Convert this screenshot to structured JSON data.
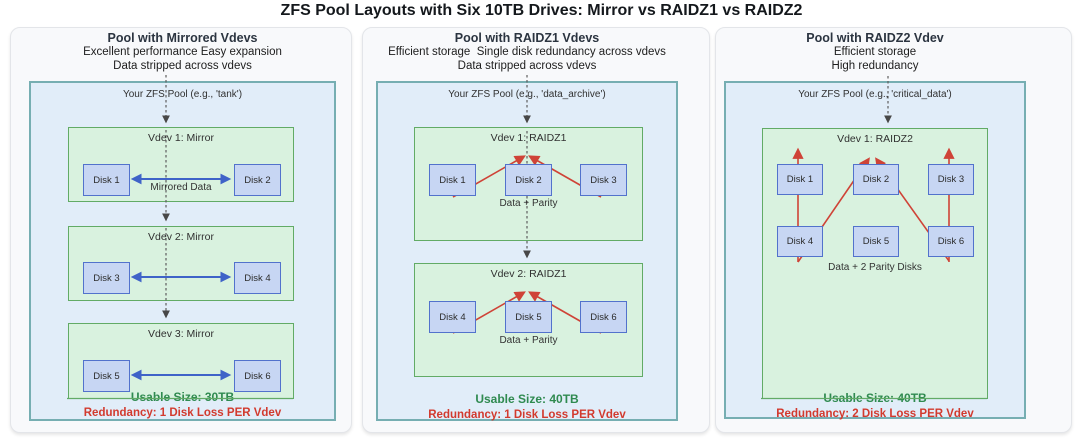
{
  "title": "ZFS Pool Layouts with Six 10TB Drives: Mirror vs RAIDZ1 vs RAIDZ2",
  "panels": [
    {
      "title": "Pool with Mirrored Vdevs",
      "subtitle1": "Excellent performance Easy expansion",
      "subtitle2": "Data stripped across vdevs",
      "pool_label": "Your ZFS Pool (e.g., 'tank')",
      "vdevs": [
        {
          "label": "Vdev 1: Mirror",
          "disks": [
            "Disk 1",
            "Disk 2"
          ],
          "annotation": "Mirrored Data"
        },
        {
          "label": "Vdev 2: Mirror",
          "disks": [
            "Disk 3",
            "Disk 4"
          ],
          "annotation": ""
        },
        {
          "label": "Vdev 3: Mirror",
          "disks": [
            "Disk 5",
            "Disk 6"
          ],
          "annotation": ""
        }
      ],
      "usable_size": "Usable Size: 30TB",
      "redundancy": "Redundancy: 1 Disk Loss PER Vdev"
    },
    {
      "title": "Pool with RAIDZ1 Vdevs",
      "subtitle1": "Efficient storage  Single disk redundancy across vdevs",
      "subtitle2": "Data stripped across vdevs",
      "pool_label": "Your ZFS Pool (e.g., 'data_archive')",
      "vdevs": [
        {
          "label": "Vdev 1: RAIDZ1",
          "disks": [
            "Disk 1",
            "Disk 2",
            "Disk 3"
          ],
          "annotation": "Data + Parity"
        },
        {
          "label": "Vdev 2: RAIDZ1",
          "disks": [
            "Disk 4",
            "Disk 5",
            "Disk 6"
          ],
          "annotation": "Data + Parity"
        }
      ],
      "usable_size": "Usable Size: 40TB",
      "redundancy": "Redundancy: 1 Disk Loss PER Vdev"
    },
    {
      "title": "Pool with RAIDZ2 Vdev",
      "subtitle1": "Efficient storage",
      "subtitle2": "High redundancy",
      "pool_label": "Your ZFS Pool (e.g., 'critical_data')",
      "vdevs": [
        {
          "label": "Vdev 1: RAIDZ2",
          "disks": [
            "Disk 1",
            "Disk 2",
            "Disk 3",
            "Disk 4",
            "Disk 5",
            "Disk 6"
          ],
          "annotation": "Data + 2 Parity Disks"
        }
      ],
      "usable_size": "Usable Size: 40TB",
      "redundancy": "Redundancy: 2 Disk Loss PER Vdev"
    }
  ],
  "colors": {
    "pool_fill": "#e1edf9",
    "pool_border": "#76aeb2",
    "vdev_fill": "#d9f2df",
    "vdev_border": "#62ab66",
    "disk_fill": "#c7d6f3",
    "disk_border": "#5272cc",
    "mirror_arrow": "#3f63c8",
    "parity_arrow": "#cf4337",
    "stripe_arrow": "#474747",
    "usable_text": "#2f8a50",
    "redundancy_text": "#d23a2e"
  }
}
